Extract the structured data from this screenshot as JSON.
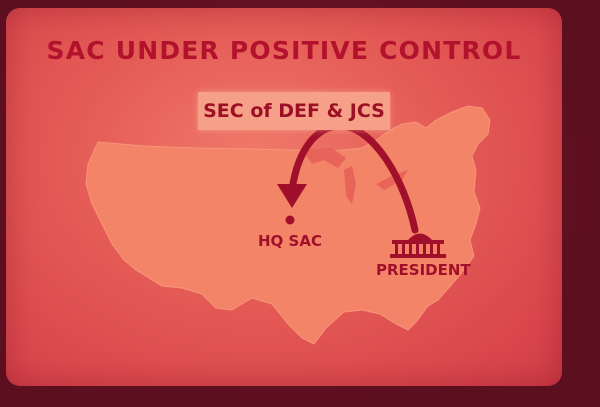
{
  "slide": {
    "title": "SAC UNDER POSITIVE CONTROL",
    "authority_box": "SEC of DEF & JCS",
    "hq_label": "HQ SAC",
    "president_label": "PRESIDENT"
  },
  "icons": {
    "capitol": "capitol-building-icon",
    "arrow": "curved-arrow-icon"
  },
  "colors": {
    "slide_background": "#e45a55",
    "map_fill": "#f48467",
    "text": "#b3122c",
    "box_fill": "#f6a089"
  }
}
